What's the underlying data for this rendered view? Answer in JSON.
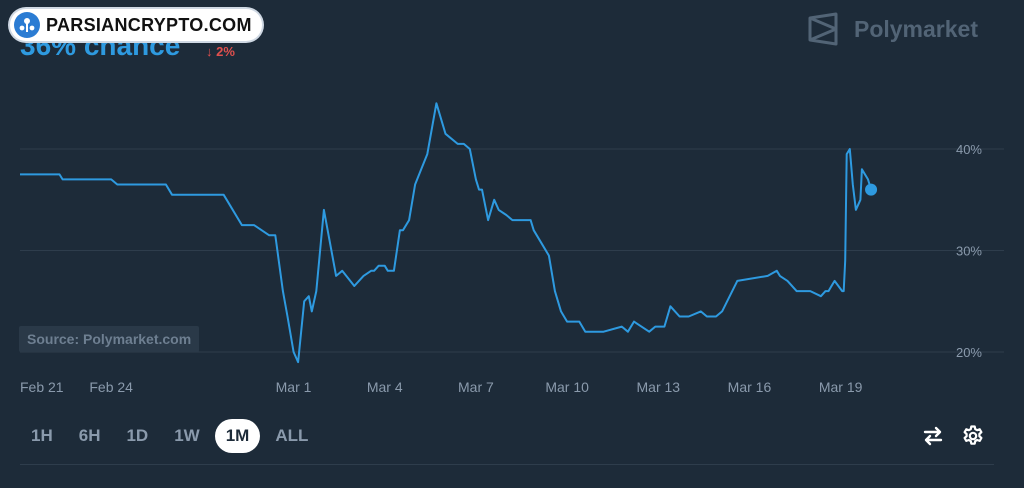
{
  "watermark": {
    "text": "PARSIANCRYPTO.COM"
  },
  "header": {
    "chance_text": "36% chance",
    "delta_text": "2%",
    "brand": "Polymarket"
  },
  "source_label": "Source: Polymarket.com",
  "controls": {
    "ranges": [
      "1H",
      "6H",
      "1D",
      "1W",
      "1M",
      "ALL"
    ],
    "active": "1M",
    "icons": [
      "swap-arrows-icon",
      "gear-icon"
    ]
  },
  "colors": {
    "line": "#2e9ae0",
    "background": "#1d2b39",
    "grid": "#2e3d4c",
    "delta": "#e0504e"
  },
  "chart_data": {
    "type": "line",
    "ylim": [
      20,
      43
    ],
    "yticks": [
      20,
      30,
      40
    ],
    "ytick_labels": [
      "20%",
      "30%",
      "40%"
    ],
    "xlim": [
      0,
      30.4
    ],
    "xtick_positions": [
      0,
      3,
      9,
      12,
      15,
      18,
      21,
      24,
      27,
      30
    ],
    "xtick_labels": [
      "Feb 21",
      "Feb 24",
      "Mar 1",
      "Mar 4",
      "Mar 7",
      "Mar 10",
      "Mar 13",
      "Mar 16",
      "Mar 19",
      ""
    ],
    "grid": "horizontal",
    "series": [
      {
        "end_marker": true,
        "x": [
          0,
          1.3,
          1.4,
          3.0,
          3.2,
          4.8,
          5.0,
          6.7,
          6.8,
          7.3,
          7.7,
          8.2,
          8.4,
          8.65,
          8.8,
          9.0,
          9.15,
          9.35,
          9.5,
          9.6,
          9.75,
          10.0,
          10.4,
          10.6,
          11.0,
          11.3,
          11.55,
          11.65,
          11.8,
          12.0,
          12.1,
          12.2,
          12.3,
          12.5,
          12.6,
          12.8,
          13.0,
          13.2,
          13.4,
          13.7,
          14.0,
          14.4,
          14.6,
          14.8,
          15.0,
          15.1,
          15.2,
          15.4,
          15.6,
          15.75,
          16.0,
          16.2,
          16.5,
          16.8,
          16.9,
          17.4,
          17.6,
          17.8,
          18.0,
          18.4,
          18.6,
          19.2,
          19.8,
          20.0,
          20.2,
          20.7,
          20.9,
          21.2,
          21.4,
          21.7,
          22.0,
          22.4,
          22.6,
          22.9,
          23.1,
          23.6,
          24.6,
          24.9,
          25.0,
          25.25,
          25.55,
          25.7,
          25.85,
          26.0,
          26.35,
          26.5,
          26.6,
          26.7,
          26.8,
          27.05,
          27.1,
          27.15,
          27.2,
          27.3,
          27.4,
          27.5,
          27.65,
          27.7,
          27.9,
          28.0
        ],
        "y": [
          37.5,
          37.5,
          37.0,
          37.0,
          36.5,
          36.5,
          35.5,
          35.5,
          35.0,
          32.5,
          32.5,
          31.5,
          31.5,
          26.0,
          23.5,
          20.0,
          19.0,
          25.0,
          25.5,
          24.0,
          26.0,
          34.0,
          27.5,
          28.0,
          26.5,
          27.5,
          28.0,
          28.0,
          28.5,
          28.5,
          28.0,
          28.0,
          28.0,
          32.0,
          32.0,
          33.0,
          36.5,
          38.0,
          39.5,
          44.5,
          41.5,
          40.5,
          40.5,
          40.0,
          37.0,
          36.0,
          36.0,
          33.0,
          35.0,
          34.0,
          33.5,
          33.0,
          33.0,
          33.0,
          32.0,
          29.5,
          26.0,
          24.0,
          23.0,
          23.0,
          22.0,
          22.0,
          22.5,
          22.0,
          23.0,
          22.0,
          22.5,
          22.5,
          24.5,
          23.5,
          23.5,
          24.0,
          23.5,
          23.5,
          24.0,
          27.0,
          27.5,
          28.0,
          27.5,
          27.0,
          26.0,
          26.0,
          26.0,
          26.0,
          25.5,
          26.0,
          26.0,
          26.5,
          27.0,
          26.0,
          26.0,
          29.0,
          39.5,
          40.0,
          36.5,
          34.0,
          35.0,
          38.0,
          37.0,
          36.0
        ]
      }
    ]
  }
}
